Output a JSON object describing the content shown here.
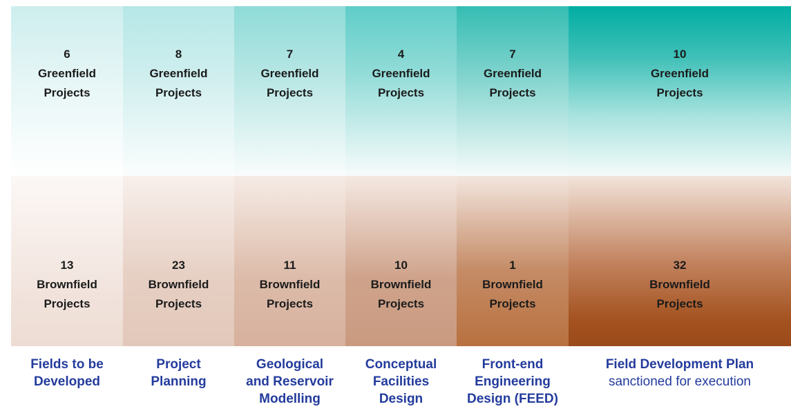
{
  "columns": [
    {
      "greenfield": {
        "count": "6",
        "line1": "Greenfield",
        "line2": "Projects"
      },
      "brownfield": {
        "count": "13",
        "line1": "Brownfield",
        "line2": "Projects"
      },
      "stage": [
        "Fields to be",
        "Developed"
      ]
    },
    {
      "greenfield": {
        "count": "8",
        "line1": "Greenfield",
        "line2": "Projects"
      },
      "brownfield": {
        "count": "23",
        "line1": "Brownfield",
        "line2": "Projects"
      },
      "stage": [
        "Project",
        "Planning"
      ]
    },
    {
      "greenfield": {
        "count": "7",
        "line1": "Greenfield",
        "line2": "Projects"
      },
      "brownfield": {
        "count": "11",
        "line1": "Brownfield",
        "line2": "Projects"
      },
      "stage": [
        "Geological",
        "and Reservoir",
        "Modelling"
      ]
    },
    {
      "greenfield": {
        "count": "4",
        "line1": "Greenfield",
        "line2": "Projects"
      },
      "brownfield": {
        "count": "10",
        "line1": "Brownfield",
        "line2": "Projects"
      },
      "stage": [
        "Conceptual",
        "Facilities",
        "Design"
      ]
    },
    {
      "greenfield": {
        "count": "7",
        "line1": "Greenfield",
        "line2": "Projects"
      },
      "brownfield": {
        "count": "1",
        "line1": "Brownfield",
        "line2": "Projects"
      },
      "stage": [
        "Front-end",
        "Engineering",
        "Design (FEED)"
      ]
    },
    {
      "greenfield": {
        "count": "10",
        "line1": "Greenfield",
        "line2": "Projects"
      },
      "brownfield": {
        "count": "32",
        "line1": "Brownfield",
        "line2": "Projects"
      },
      "stage": [
        "Field Development Plan"
      ],
      "stage_sub": "sanctioned for execution"
    }
  ],
  "colors": {
    "stage_text": "#233b9c",
    "greenfield_accent": "#00ada3",
    "brownfield_accent": "#9a4a1a"
  }
}
